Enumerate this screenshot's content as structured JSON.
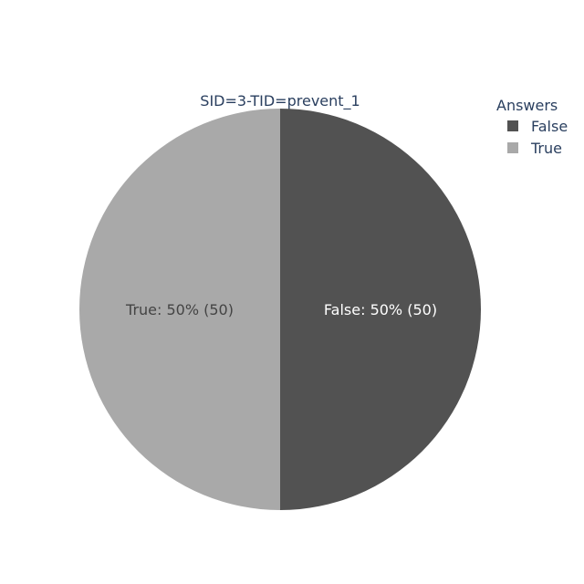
{
  "chart_data": {
    "type": "pie",
    "title": "SID=3-TID=prevent_1",
    "legend": {
      "title": "Answers",
      "placement": "top-right"
    },
    "slices": [
      {
        "label": "False",
        "value": 50,
        "percent": "50%",
        "color": "#525252",
        "text_color": "#ffffff",
        "text": "False: 50% (50)"
      },
      {
        "label": "True",
        "value": 50,
        "percent": "50%",
        "color": "#a9a9a9",
        "text_color": "#444444",
        "text": "True: 50% (50)"
      }
    ]
  }
}
